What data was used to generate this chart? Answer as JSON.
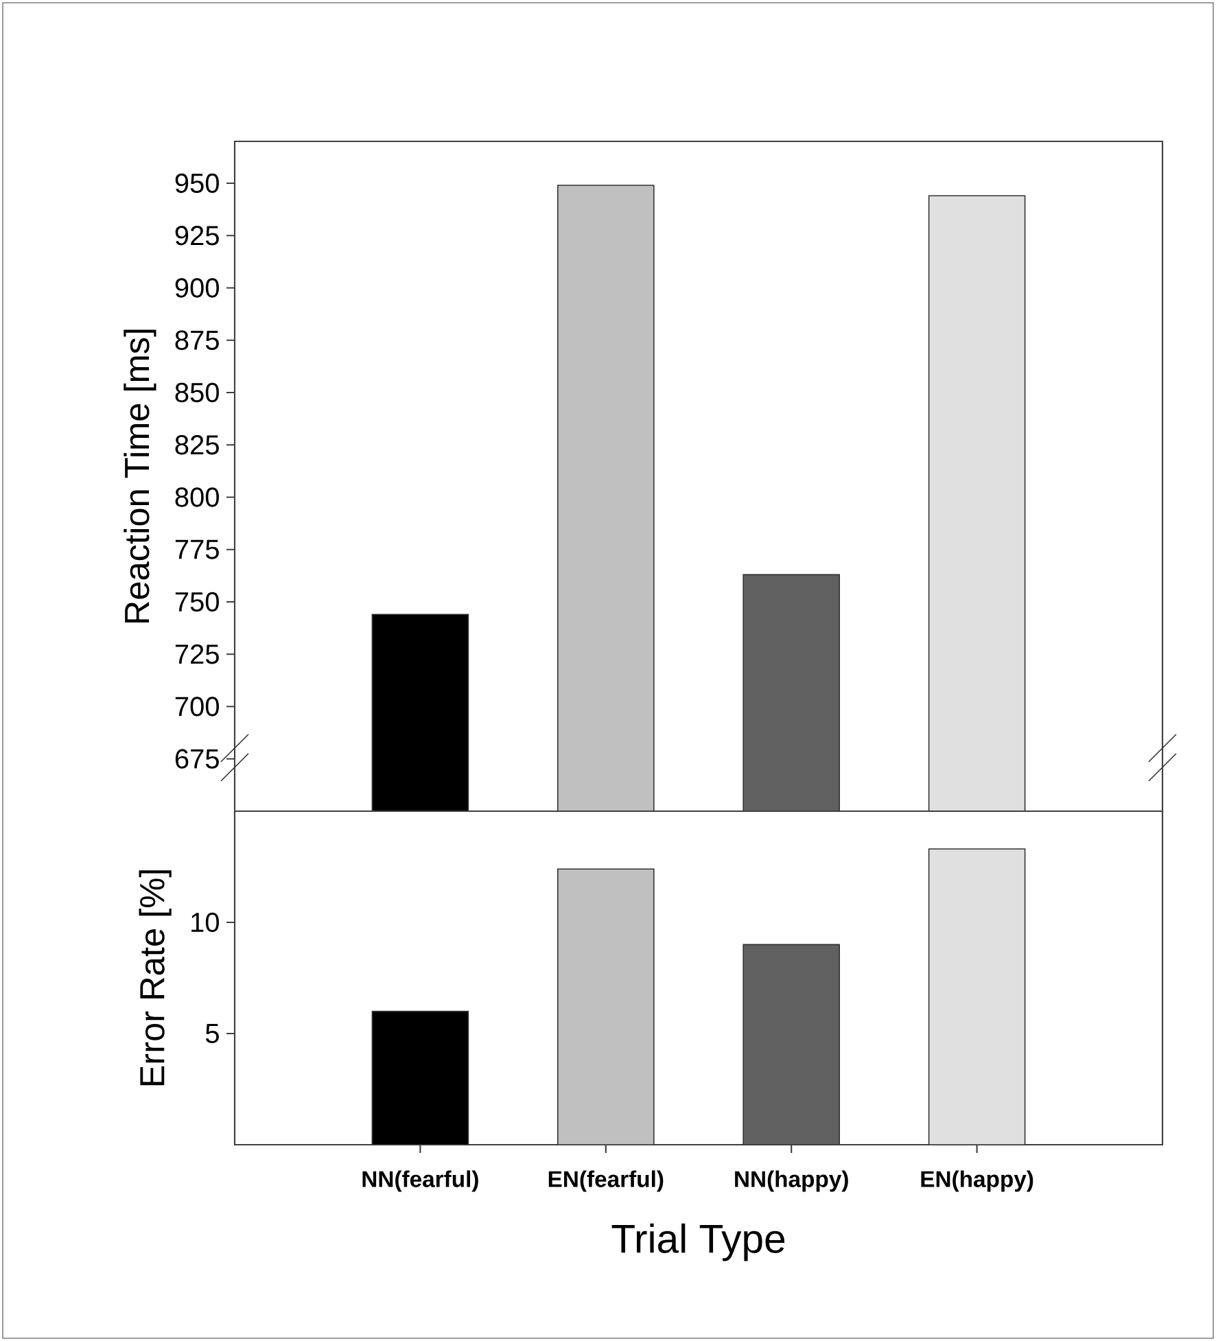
{
  "chart_data": [
    {
      "type": "bar",
      "categories": [
        null,
        null,
        null,
        null
      ],
      "values": [
        744,
        949,
        763,
        944
      ],
      "colors": [
        "#000000",
        "#c0c0c0",
        "#606060",
        "#e0e0e0"
      ],
      "ylabel": "Reaction Time [ms]",
      "ylim": [
        650,
        970
      ],
      "yticks": [
        675,
        700,
        725,
        750,
        775,
        800,
        825,
        850,
        875,
        900,
        925,
        950
      ],
      "tick_labels": "y"
    },
    {
      "type": "bar",
      "categories": [
        "NN(fearful)",
        "EN(fearful)",
        "NN(happy)",
        "EN(happy)"
      ],
      "values": [
        6.0,
        12.4,
        9.0,
        13.3
      ],
      "colors": [
        "#000000",
        "#c0c0c0",
        "#606060",
        "#e0e0e0"
      ],
      "xlabel": "Trial Type",
      "ylabel": "Error Rate [%]",
      "ylim": [
        0,
        15
      ],
      "yticks": [
        5,
        10
      ]
    }
  ]
}
